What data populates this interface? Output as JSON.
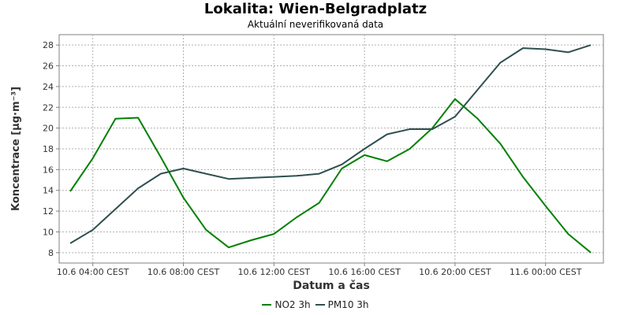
{
  "chart_data": {
    "type": "line",
    "title": "Lokalita: Wien-Belgradplatz",
    "subtitle": "Aktuální neverifikovaná data",
    "xlabel": "Datum a čas",
    "ylabel": "Koncentrace [µg·m⁻³]",
    "ylim": [
      7,
      29
    ],
    "yticks": [
      8,
      10,
      12,
      14,
      16,
      18,
      20,
      22,
      24,
      26,
      28
    ],
    "x_tick_labels": [
      "10.6 04:00 CEST",
      "10.6 08:00 CEST",
      "10.6 12:00 CEST",
      "10.6 16:00 CEST",
      "10.6 20:00 CEST",
      "11.6 00:00 CEST"
    ],
    "x": [
      "10.6 03:00",
      "10.6 04:00",
      "10.6 05:00",
      "10.6 06:00",
      "10.6 07:00",
      "10.6 08:00",
      "10.6 09:00",
      "10.6 10:00",
      "10.6 11:00",
      "10.6 12:00",
      "10.6 13:00",
      "10.6 14:00",
      "10.6 15:00",
      "10.6 16:00",
      "10.6 17:00",
      "10.6 18:00",
      "10.6 19:00",
      "10.6 20:00",
      "10.6 21:00",
      "10.6 22:00",
      "10.6 23:00",
      "11.6 00:00",
      "11.6 01:00",
      "11.6 02:00"
    ],
    "series": [
      {
        "name": "NO2 3h",
        "color": "#008000",
        "values": [
          13.9,
          17.1,
          20.9,
          21.0,
          17.2,
          13.3,
          10.2,
          8.5,
          9.2,
          9.8,
          11.4,
          12.8,
          16.1,
          17.4,
          16.8,
          18.0,
          20.0,
          22.8,
          20.9,
          18.5,
          15.3,
          12.5,
          9.8,
          8.0
        ]
      },
      {
        "name": "PM10 3h",
        "color": "#2f4f4f",
        "values": [
          8.9,
          10.2,
          12.2,
          14.2,
          15.6,
          16.1,
          15.6,
          15.1,
          15.2,
          15.3,
          15.4,
          15.6,
          16.5,
          18.0,
          19.4,
          19.9,
          19.9,
          21.1,
          23.7,
          26.3,
          27.7,
          27.6,
          27.3,
          28.0
        ]
      }
    ],
    "grid": true,
    "legend_position": "bottom"
  }
}
